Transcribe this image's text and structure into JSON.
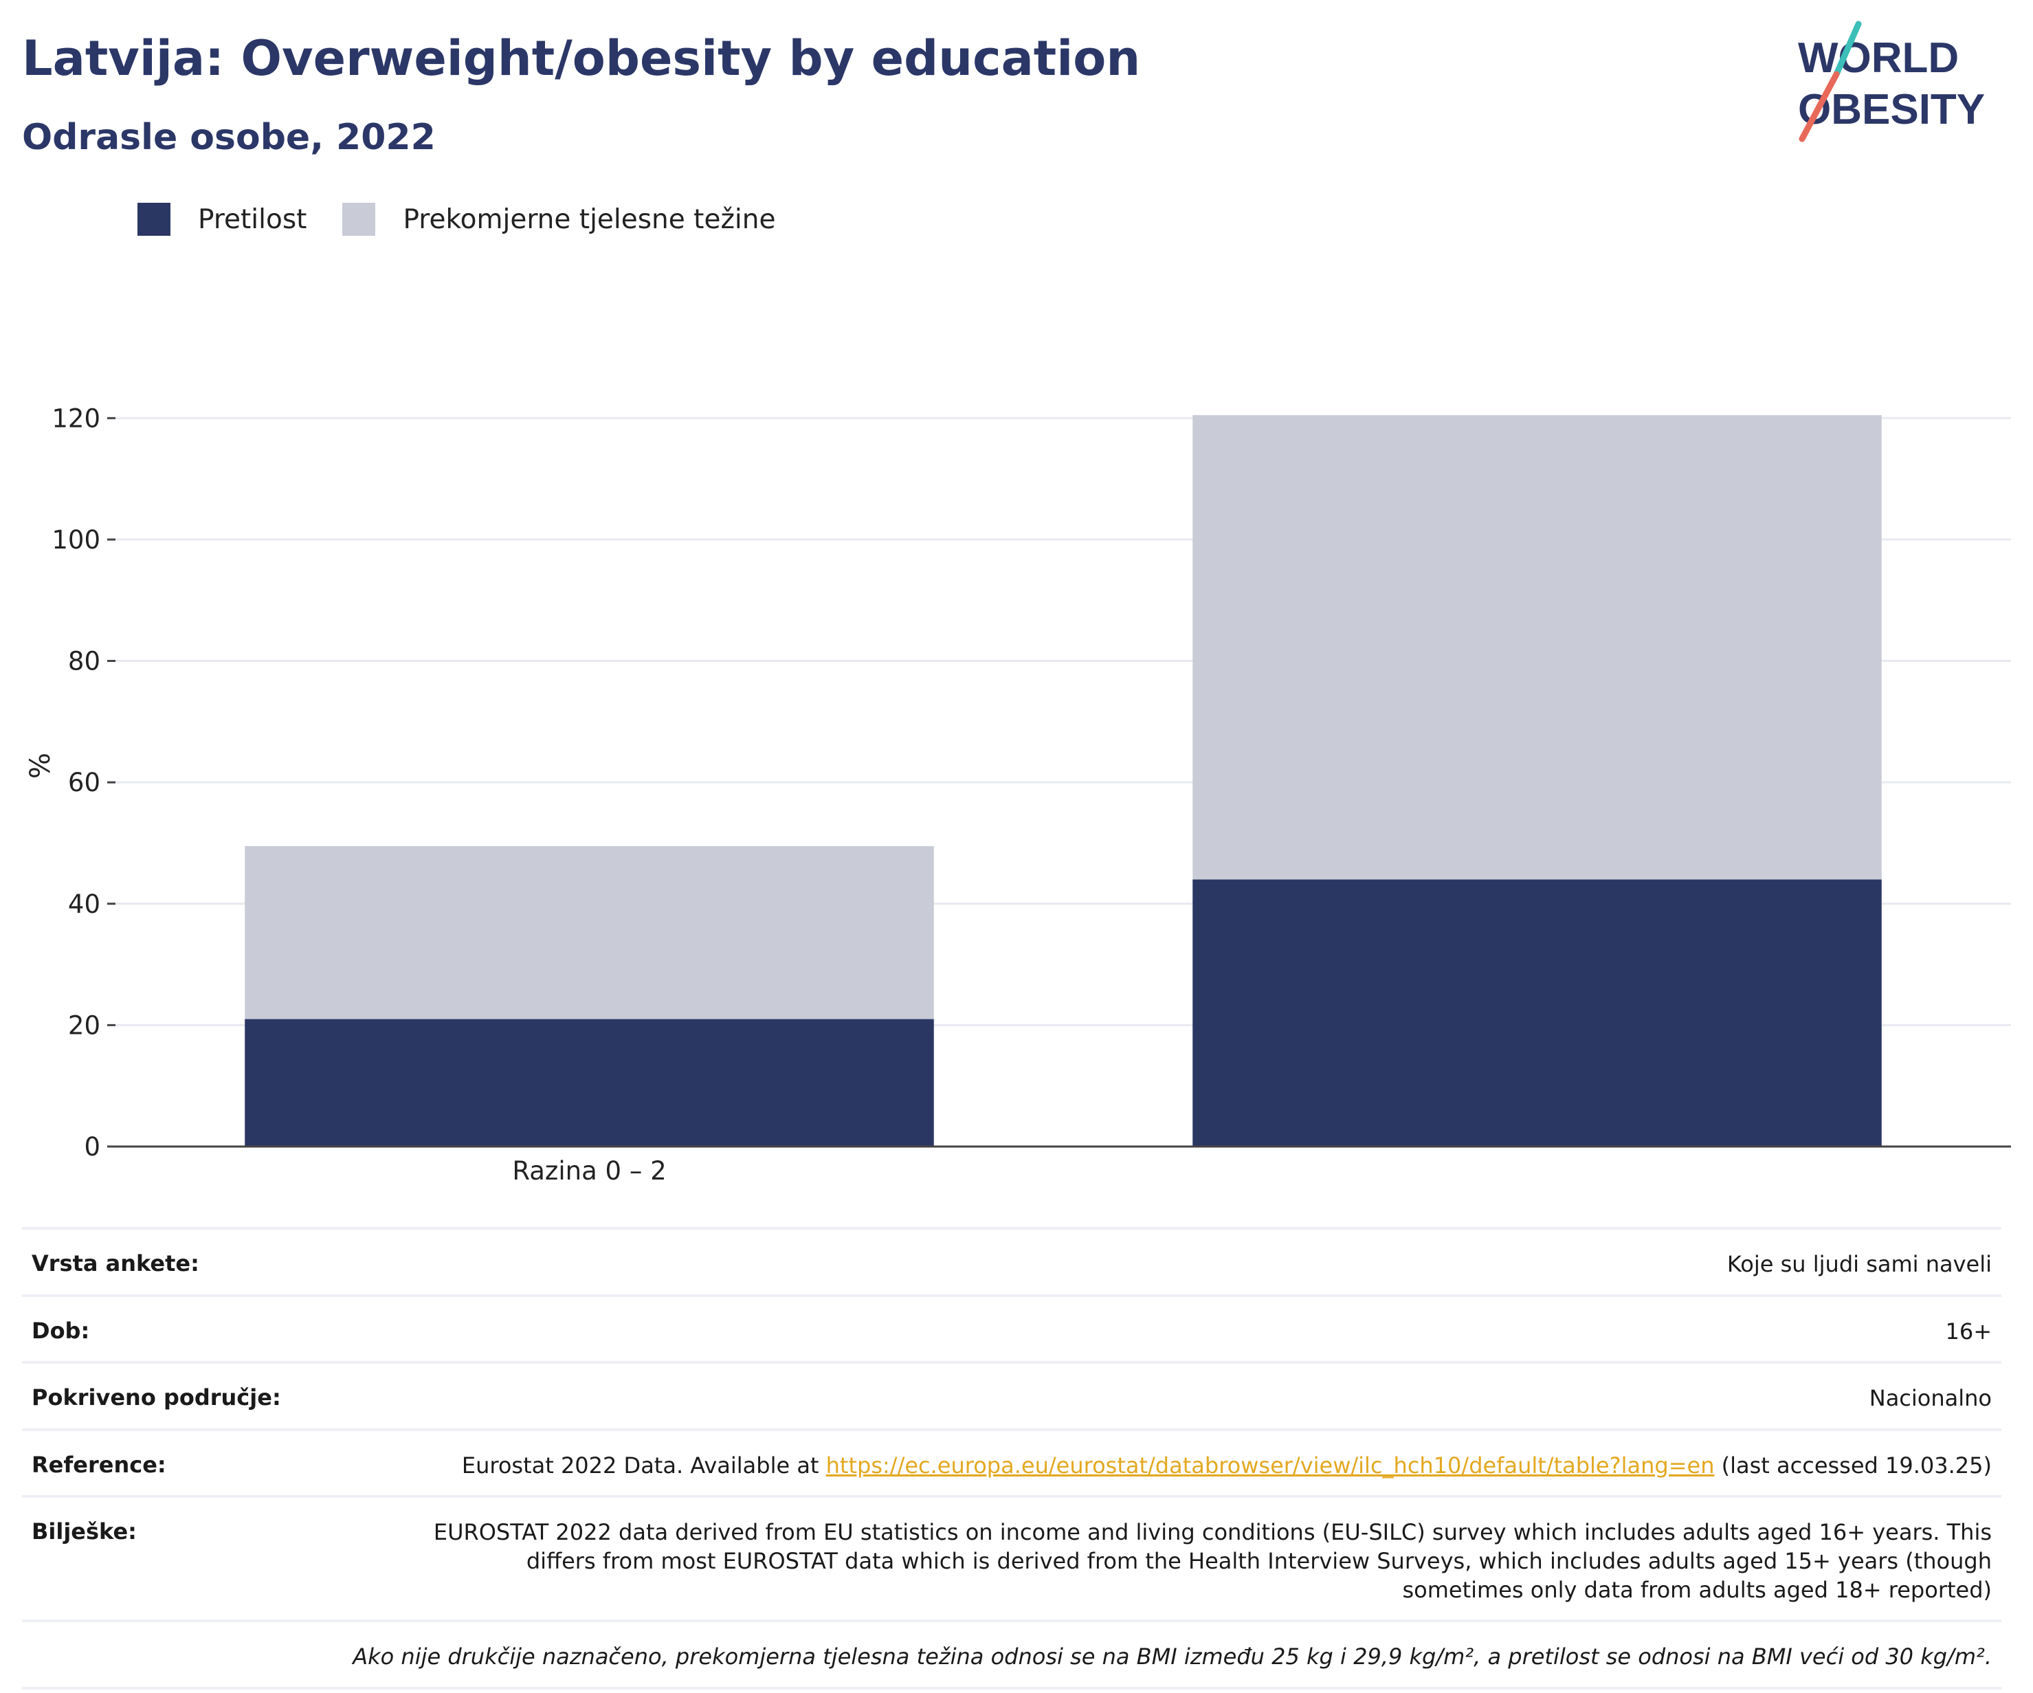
{
  "header": {
    "title": "Latvija: Overweight/obesity by education",
    "subtitle": "Odrasle osobe, 2022"
  },
  "logo": {
    "line1": "WORLD",
    "line2": "OBESITY"
  },
  "legend": [
    {
      "label": "Pretilost",
      "color": "#2b3763"
    },
    {
      "label": "Prekomjerne tjelesne težine",
      "color": "#c9ccd7"
    }
  ],
  "chart_data": {
    "type": "bar",
    "stacked": true,
    "categories": [
      "Razina 0 – 2",
      ""
    ],
    "series": [
      {
        "name": "Pretilost",
        "values": [
          21,
          44
        ],
        "color": "#2b3763"
      },
      {
        "name": "Prekomjerne tjelesne težine",
        "values": [
          28.5,
          76.5
        ],
        "color": "#c9ccd7"
      }
    ],
    "ylabel": "%",
    "ylim": [
      0,
      130
    ],
    "yticks": [
      0,
      20,
      40,
      60,
      80,
      100,
      120
    ],
    "grid": true,
    "legend_position": "top-left"
  },
  "info": {
    "survey_label": "Vrsta ankete:",
    "survey_value": "Koje su ljudi sami naveli",
    "age_label": "Dob:",
    "age_value": "16+",
    "coverage_label": "Pokriveno područje:",
    "coverage_value": "Nacionalno",
    "reference_label": "Reference:",
    "reference_prefix": "Eurostat 2022 Data. Available at",
    "reference_link": "https://ec.europa.eu/eurostat/databrowser/view/ilc_hch10/default/table?lang=en",
    "reference_suffix": "(last accessed 19.03.25)",
    "notes_label": "Bilješke:",
    "notes_value": "EUROSTAT 2022 data derived from EU statistics on income and living conditions (EU-SILC) survey which includes adults aged 16+ years. This differs from most EUROSTAT data which is derived from the Health Interview Surveys, which includes adults aged 15+ years (though sometimes only data from adults aged 18+ reported)",
    "footnote": "Ako nije drukčije naznačeno, prekomjerna tjelesna težina odnosi se na BMI između 25 kg i 29,9 kg/m², a pretilost se odnosi na BMI veći od 30 kg/m²."
  }
}
